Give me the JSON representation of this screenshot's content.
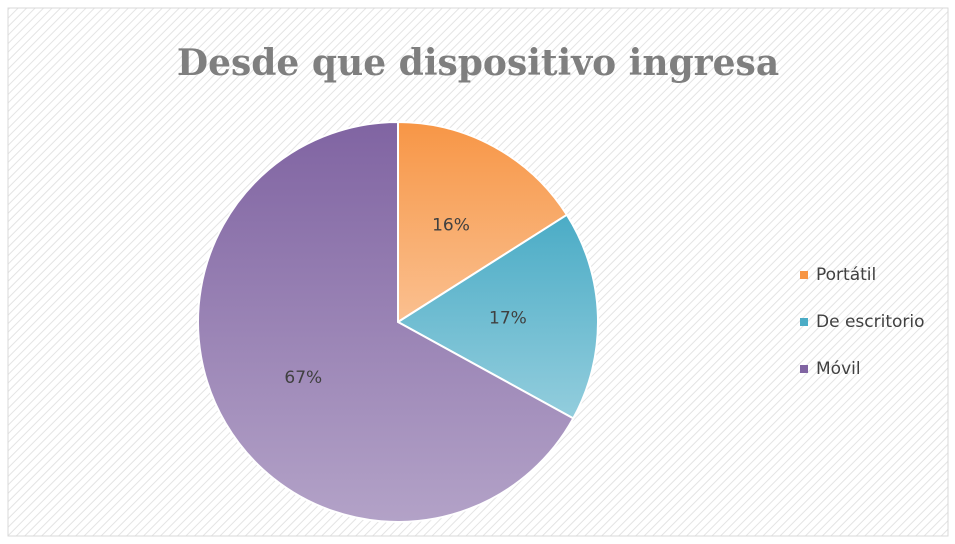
{
  "chart_data": {
    "type": "pie",
    "title": "Desde que dispositivo ingresa",
    "categories": [
      "Portátil",
      "De escritorio",
      "Móvil"
    ],
    "values": [
      16,
      17,
      67
    ],
    "value_labels": [
      "16%",
      "17%",
      "67%"
    ],
    "colors": [
      "#f79646",
      "#4bacc6",
      "#8064a2"
    ],
    "legend": "right"
  }
}
